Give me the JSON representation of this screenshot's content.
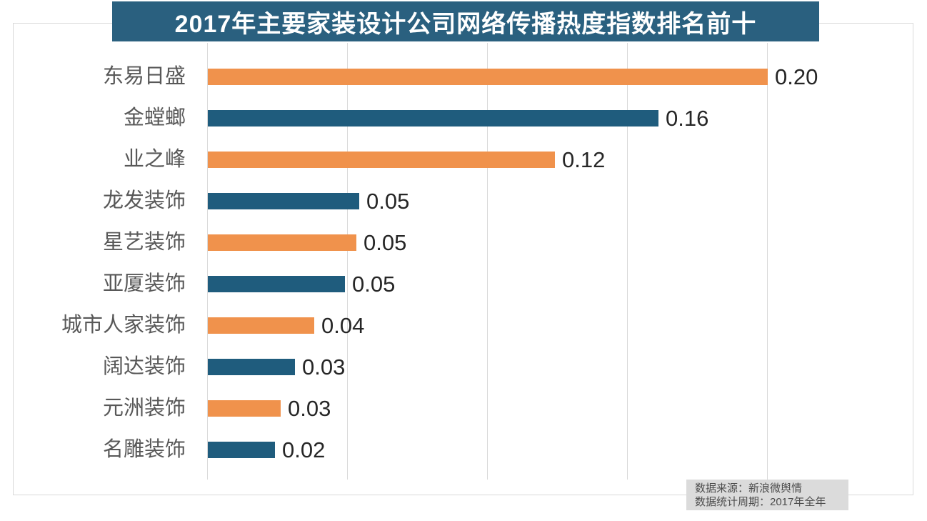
{
  "title": "2017年主要家装设计公司网络传播热度指数排名前十",
  "colors": {
    "orange": "#F0924C",
    "blue": "#1F5C7D",
    "title_bg": "#2A607F",
    "title_text": "#FFFFFF",
    "grid": "#D9D9D9",
    "category_label": "#585858",
    "value_label": "#262626",
    "note_bg": "#DBDBDB",
    "note_text": "#4D4D4D"
  },
  "source_note": {
    "line1": "数据来源：新浪微舆情",
    "line2": "数据统计周期：2017年全年"
  },
  "chart_data": {
    "type": "bar",
    "orientation": "horizontal",
    "title": "2017年主要家装设计公司网络传播热度指数排名前十",
    "xlabel": "",
    "ylabel": "",
    "xlim": [
      0,
      0.2
    ],
    "gridlines": [
      0,
      0.05,
      0.1,
      0.15,
      0.2
    ],
    "grid": "on",
    "legend": "none",
    "categories": [
      "东易日盛",
      "金螳螂",
      "业之峰",
      "龙发装饰",
      "星艺装饰",
      "亚厦装饰",
      "城市人家装饰",
      "阔达装饰",
      "元洲装饰",
      "名雕装饰"
    ],
    "values": [
      0.2,
      0.161,
      0.124,
      0.054,
      0.053,
      0.049,
      0.038,
      0.031,
      0.026,
      0.024
    ],
    "value_labels": [
      "0.20",
      "0.16",
      "0.12",
      "0.05",
      "0.05",
      "0.05",
      "0.04",
      "0.03",
      "0.03",
      "0.02"
    ],
    "bar_colors": [
      "orange",
      "blue",
      "orange",
      "blue",
      "orange",
      "blue",
      "orange",
      "blue",
      "orange",
      "blue"
    ]
  }
}
